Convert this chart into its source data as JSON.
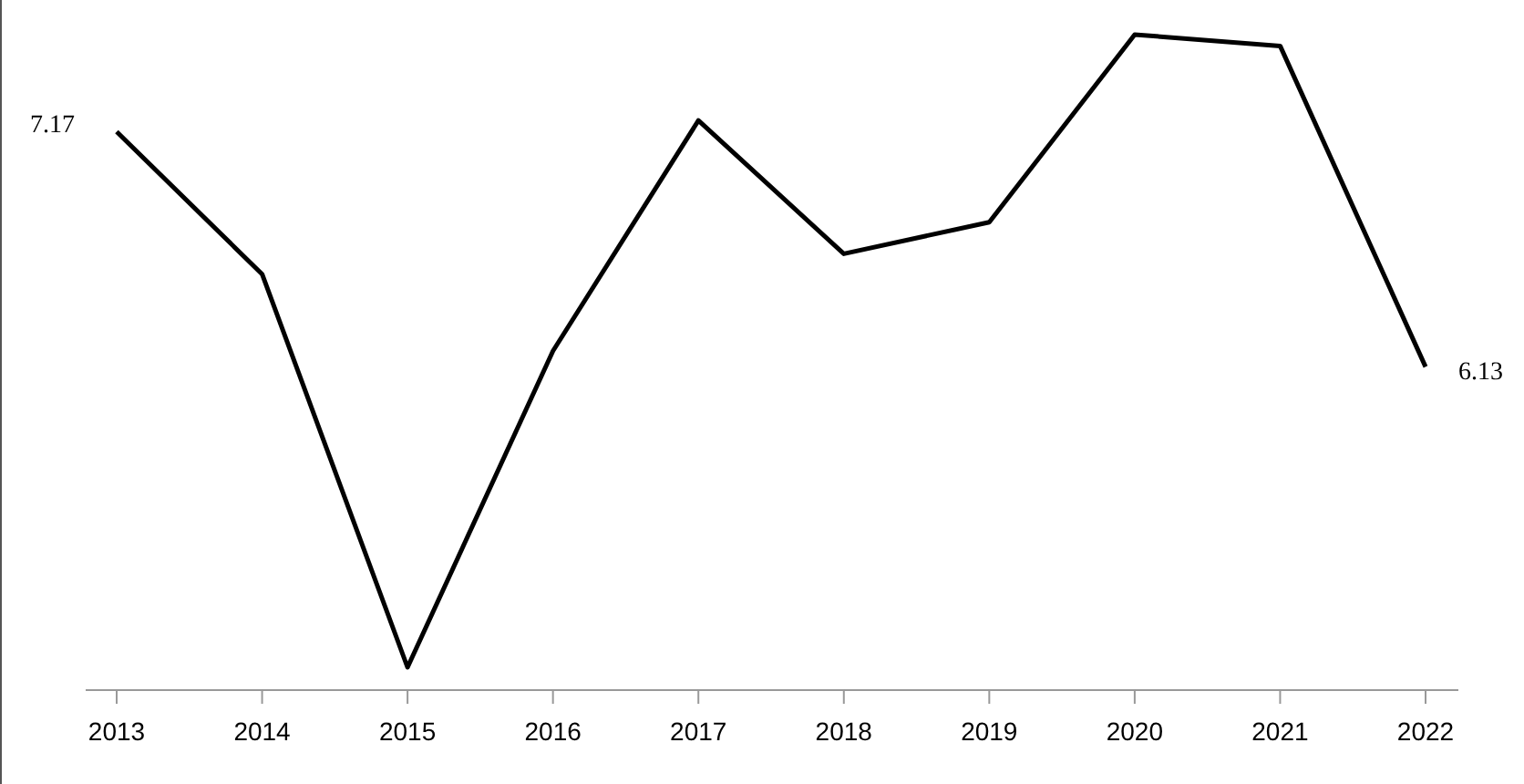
{
  "chart_data": {
    "type": "line",
    "categories": [
      "2013",
      "2014",
      "2015",
      "2016",
      "2017",
      "2018",
      "2019",
      "2020",
      "2021",
      "2022"
    ],
    "series": [
      {
        "color": "#000000",
        "values": [
          7.17,
          6.54,
          4.8,
          6.2,
          7.22,
          6.63,
          6.77,
          7.6,
          7.55,
          6.13
        ],
        "value_labels": [
          "7.17",
          null,
          null,
          null,
          null,
          null,
          null,
          null,
          null,
          "6.13"
        ]
      }
    ],
    "tick_labels": "x",
    "marker": "none",
    "line_style": "solid"
  }
}
